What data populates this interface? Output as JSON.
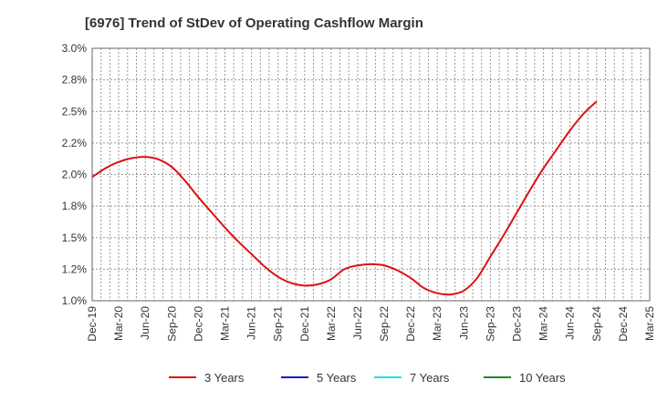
{
  "chart_data": {
    "type": "line",
    "title": "[6976]  Trend of StDev of Operating Cashflow Margin",
    "xlabel": "",
    "ylabel": "",
    "x_ticks": [
      "Dec-19",
      "Mar-20",
      "Jun-20",
      "Sep-20",
      "Dec-20",
      "Mar-21",
      "Jun-21",
      "Sep-21",
      "Dec-21",
      "Mar-22",
      "Jun-22",
      "Sep-22",
      "Dec-22",
      "Mar-23",
      "Jun-23",
      "Sep-23",
      "Dec-23",
      "Mar-24",
      "Jun-24",
      "Sep-24",
      "Dec-24",
      "Mar-25"
    ],
    "y_ticks": [
      "1.0%",
      "1.2%",
      "1.5%",
      "1.8%",
      "2.0%",
      "2.2%",
      "2.5%",
      "2.8%",
      "3.0%"
    ],
    "ylim": [
      1.0,
      3.0
    ],
    "grid": true,
    "legend_position": "bottom",
    "series": [
      {
        "name": "3 Years",
        "color": "#dd1111",
        "x": [
          0,
          0.5,
          1,
          1.5,
          2,
          2.5,
          3,
          3.5,
          4,
          4.5,
          5,
          5.5,
          6,
          6.5,
          7,
          7.5,
          8,
          8.5,
          9,
          9.5,
          10,
          10.5,
          11,
          11.5,
          12,
          12.5,
          13,
          13.5,
          14,
          14.5,
          15,
          15.5,
          16,
          16.5,
          17,
          17.5,
          18,
          18.5,
          19
        ],
        "y": [
          1.98,
          2.05,
          2.1,
          2.13,
          2.14,
          2.12,
          2.06,
          1.95,
          1.82,
          1.7,
          1.58,
          1.47,
          1.37,
          1.27,
          1.19,
          1.14,
          1.12,
          1.13,
          1.17,
          1.25,
          1.28,
          1.29,
          1.28,
          1.24,
          1.18,
          1.1,
          1.06,
          1.05,
          1.08,
          1.18,
          1.35,
          1.52,
          1.7,
          1.88,
          2.05,
          2.2,
          2.35,
          2.48,
          2.58
        ]
      },
      {
        "name": "5 Years",
        "color": "#1a1acc",
        "x": [],
        "y": []
      },
      {
        "name": "7 Years",
        "color": "#22e0ee",
        "x": [],
        "y": []
      },
      {
        "name": "10 Years",
        "color": "#228822",
        "x": [],
        "y": []
      }
    ]
  }
}
